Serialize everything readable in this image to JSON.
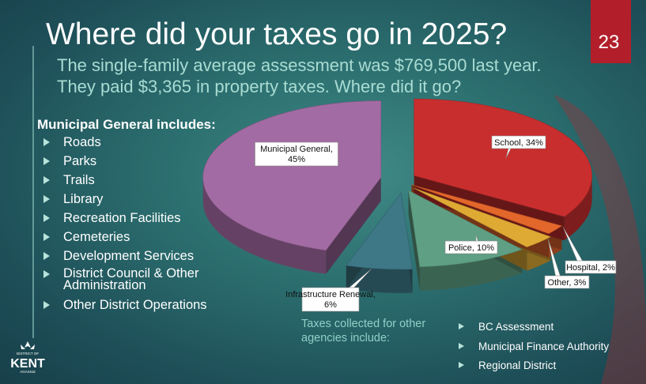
{
  "slide": {
    "title": "Where did your taxes go in 2025?",
    "subtitle_line1": "The single-family average assessment was $769,500 last year.",
    "subtitle_line2": "They paid $3,365 in property taxes. Where did it go?",
    "page_number": "23"
  },
  "municipal_list": {
    "title": "Municipal General includes:",
    "items": [
      "Roads",
      "Parks",
      "Trails",
      "Library",
      "Recreation Facilities",
      "Cemeteries",
      "Development Services",
      "District Council & Other Administration",
      "Other District Operations"
    ]
  },
  "agencies": {
    "note": "Taxes collected for other agencies include:",
    "items": [
      "BC Assessment",
      "Municipal Finance Authority",
      "Regional District"
    ]
  },
  "logo": {
    "top": "DISTRICT OF",
    "main": "KENT",
    "bottom": "AGASSIZ"
  },
  "chart_data": {
    "type": "pie",
    "style": "3d-exploded",
    "slices": [
      {
        "label": "Municipal General,",
        "value_label": "45%",
        "value": 45,
        "color": "#a36ba3"
      },
      {
        "label": "School,",
        "value_label": "34%",
        "value": 34,
        "color": "#c92e2e"
      },
      {
        "label": "Hospital,",
        "value_label": "2%",
        "value": 2,
        "color": "#e3662b"
      },
      {
        "label": "Other,",
        "value_label": "3%",
        "value": 3,
        "color": "#dfaa34"
      },
      {
        "label": "Police,",
        "value_label": "10%",
        "value": 10,
        "color": "#5f9f84"
      },
      {
        "label": "Infrastructure Renewal,",
        "value_label": "6%",
        "value": 6,
        "color": "#3e7786"
      }
    ]
  }
}
